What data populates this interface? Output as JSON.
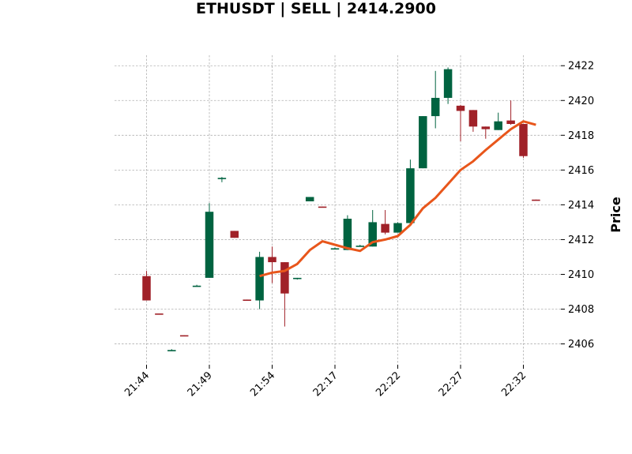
{
  "chart_data": {
    "type": "candlestick",
    "title": "ETHUSDT | SELL | 2414.2900",
    "ylabel": "Price",
    "xlabel": "",
    "ylim": [
      2404.8,
      2422.6
    ],
    "y_ticks": [
      2406,
      2408,
      2410,
      2412,
      2414,
      2416,
      2418,
      2420,
      2422
    ],
    "x_tick_labels": [
      {
        "index": 0,
        "label": "21:44"
      },
      {
        "index": 5,
        "label": "21:49"
      },
      {
        "index": 10,
        "label": "21:54"
      },
      {
        "index": 15,
        "label": "22:17"
      },
      {
        "index": 20,
        "label": "22:22"
      },
      {
        "index": 25,
        "label": "22:27"
      },
      {
        "index": 30,
        "label": "22:32"
      }
    ],
    "grid": true,
    "colors": {
      "up": "#006340",
      "down": "#a02128",
      "ma": "#e8561b",
      "grid": "#b0b0b0"
    },
    "candles": [
      {
        "o": 2409.9,
        "h": 2410.2,
        "l": 2408.5,
        "c": 2408.5
      },
      {
        "o": 2407.75,
        "h": 2407.75,
        "l": 2407.7,
        "c": 2407.7
      },
      {
        "o": 2405.65,
        "h": 2405.7,
        "l": 2405.6,
        "c": 2405.65
      },
      {
        "o": 2406.5,
        "h": 2406.5,
        "l": 2406.45,
        "c": 2406.45
      },
      {
        "o": 2409.35,
        "h": 2409.4,
        "l": 2409.3,
        "c": 2409.35
      },
      {
        "o": 2409.8,
        "h": 2414.1,
        "l": 2409.8,
        "c": 2413.6
      },
      {
        "o": 2415.5,
        "h": 2415.6,
        "l": 2415.3,
        "c": 2415.55
      },
      {
        "o": 2412.5,
        "h": 2412.5,
        "l": 2412.1,
        "c": 2412.1
      },
      {
        "o": 2408.55,
        "h": 2408.55,
        "l": 2408.5,
        "c": 2408.5
      },
      {
        "o": 2408.5,
        "h": 2411.3,
        "l": 2408.0,
        "c": 2411.0
      },
      {
        "o": 2411.0,
        "h": 2411.6,
        "l": 2409.5,
        "c": 2410.7
      },
      {
        "o": 2410.7,
        "h": 2410.7,
        "l": 2407.0,
        "c": 2408.9
      },
      {
        "o": 2409.75,
        "h": 2409.8,
        "l": 2409.7,
        "c": 2409.8
      },
      {
        "o": 2414.2,
        "h": 2414.45,
        "l": 2414.2,
        "c": 2414.45
      },
      {
        "o": 2413.9,
        "h": 2413.9,
        "l": 2413.85,
        "c": 2413.85
      },
      {
        "o": 2411.5,
        "h": 2411.55,
        "l": 2411.45,
        "c": 2411.5
      },
      {
        "o": 2411.4,
        "h": 2413.4,
        "l": 2411.4,
        "c": 2413.2
      },
      {
        "o": 2411.65,
        "h": 2411.7,
        "l": 2411.6,
        "c": 2411.65
      },
      {
        "o": 2411.6,
        "h": 2413.7,
        "l": 2411.6,
        "c": 2413.0
      },
      {
        "o": 2412.9,
        "h": 2413.7,
        "l": 2412.3,
        "c": 2412.4
      },
      {
        "o": 2412.4,
        "h": 2413.0,
        "l": 2412.4,
        "c": 2412.95
      },
      {
        "o": 2412.95,
        "h": 2416.6,
        "l": 2412.9,
        "c": 2416.1
      },
      {
        "o": 2416.1,
        "h": 2419.1,
        "l": 2416.1,
        "c": 2419.1
      },
      {
        "o": 2419.1,
        "h": 2421.7,
        "l": 2418.4,
        "c": 2420.15
      },
      {
        "o": 2420.15,
        "h": 2421.9,
        "l": 2419.8,
        "c": 2421.8
      },
      {
        "o": 2419.7,
        "h": 2419.75,
        "l": 2417.65,
        "c": 2419.4
      },
      {
        "o": 2419.45,
        "h": 2419.45,
        "l": 2418.2,
        "c": 2418.5
      },
      {
        "o": 2418.5,
        "h": 2418.5,
        "l": 2417.8,
        "c": 2418.35
      },
      {
        "o": 2418.3,
        "h": 2419.3,
        "l": 2418.3,
        "c": 2418.8
      },
      {
        "o": 2418.85,
        "h": 2420.0,
        "l": 2418.6,
        "c": 2418.65
      },
      {
        "o": 2418.65,
        "h": 2418.65,
        "l": 2416.7,
        "c": 2416.8
      },
      {
        "o": 2414.3,
        "h": 2414.3,
        "l": 2414.25,
        "c": 2414.25
      }
    ],
    "moving_average": {
      "start_index": 9,
      "values": [
        2409.9,
        2410.1,
        2410.2,
        2410.6,
        2411.4,
        2411.9,
        2411.7,
        2411.5,
        2411.35,
        2411.85,
        2412.0,
        2412.2,
        2412.85,
        2413.8,
        2414.4,
        2415.2,
        2416.0,
        2416.5,
        2417.15,
        2417.75,
        2418.35,
        2418.8,
        2418.6
      ]
    }
  }
}
